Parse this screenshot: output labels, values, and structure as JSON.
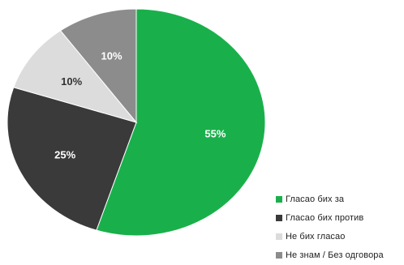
{
  "chart_data": {
    "type": "pie",
    "categories": [
      "Гласао бих за",
      "Гласао бих против",
      "Не бих гласао",
      "Не знам / Без одговора"
    ],
    "values": [
      55,
      25,
      10,
      10
    ],
    "data_labels": [
      "55%",
      "25%",
      "10%",
      "10%"
    ],
    "colors": [
      "#19b04b",
      "#3a3a3a",
      "#dcdcdc",
      "#8c8c8c"
    ],
    "label_colors": [
      "#ffffff",
      "#ffffff",
      "#333333",
      "#ffffff"
    ],
    "start": "12 o'clock",
    "direction": "clockwise",
    "legend": {
      "position": "bottom-right",
      "items": [
        {
          "label": "Гласао бих за",
          "color": "#19b04b"
        },
        {
          "label": "Гласао бих против",
          "color": "#3a3a3a"
        },
        {
          "label": "Не бих гласао",
          "color": "#dcdcdc"
        },
        {
          "label": "Не знам / Без одговора",
          "color": "#8c8c8c"
        }
      ]
    }
  }
}
